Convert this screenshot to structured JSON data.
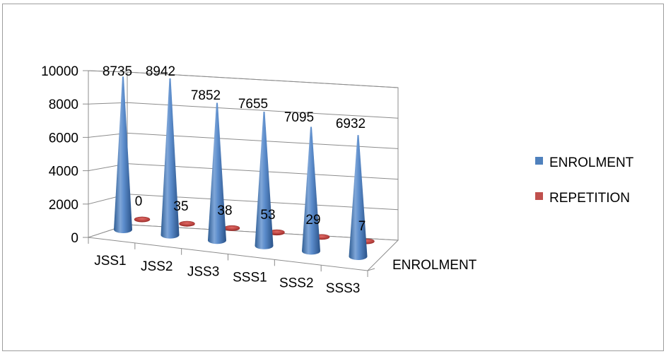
{
  "chart_data": {
    "type": "bar",
    "style": "3d-cone",
    "categories": [
      "JSS1",
      "JSS2",
      "JSS3",
      "SSS1",
      "SSS2",
      "SSS3"
    ],
    "series": [
      {
        "name": "ENROLMENT",
        "values": [
          8735,
          8942,
          7852,
          7655,
          7095,
          6932
        ],
        "color": "#4f81bd"
      },
      {
        "name": "REPETITION",
        "values": [
          0,
          35,
          38,
          53,
          29,
          7
        ],
        "color": "#c0504d"
      }
    ],
    "z_axis_label": "ENROLMENT",
    "ylim": [
      0,
      10000
    ],
    "yticks": [
      "0",
      "2000",
      "4000",
      "6000",
      "8000",
      "10000"
    ],
    "grid": true,
    "legend_position": "right"
  }
}
